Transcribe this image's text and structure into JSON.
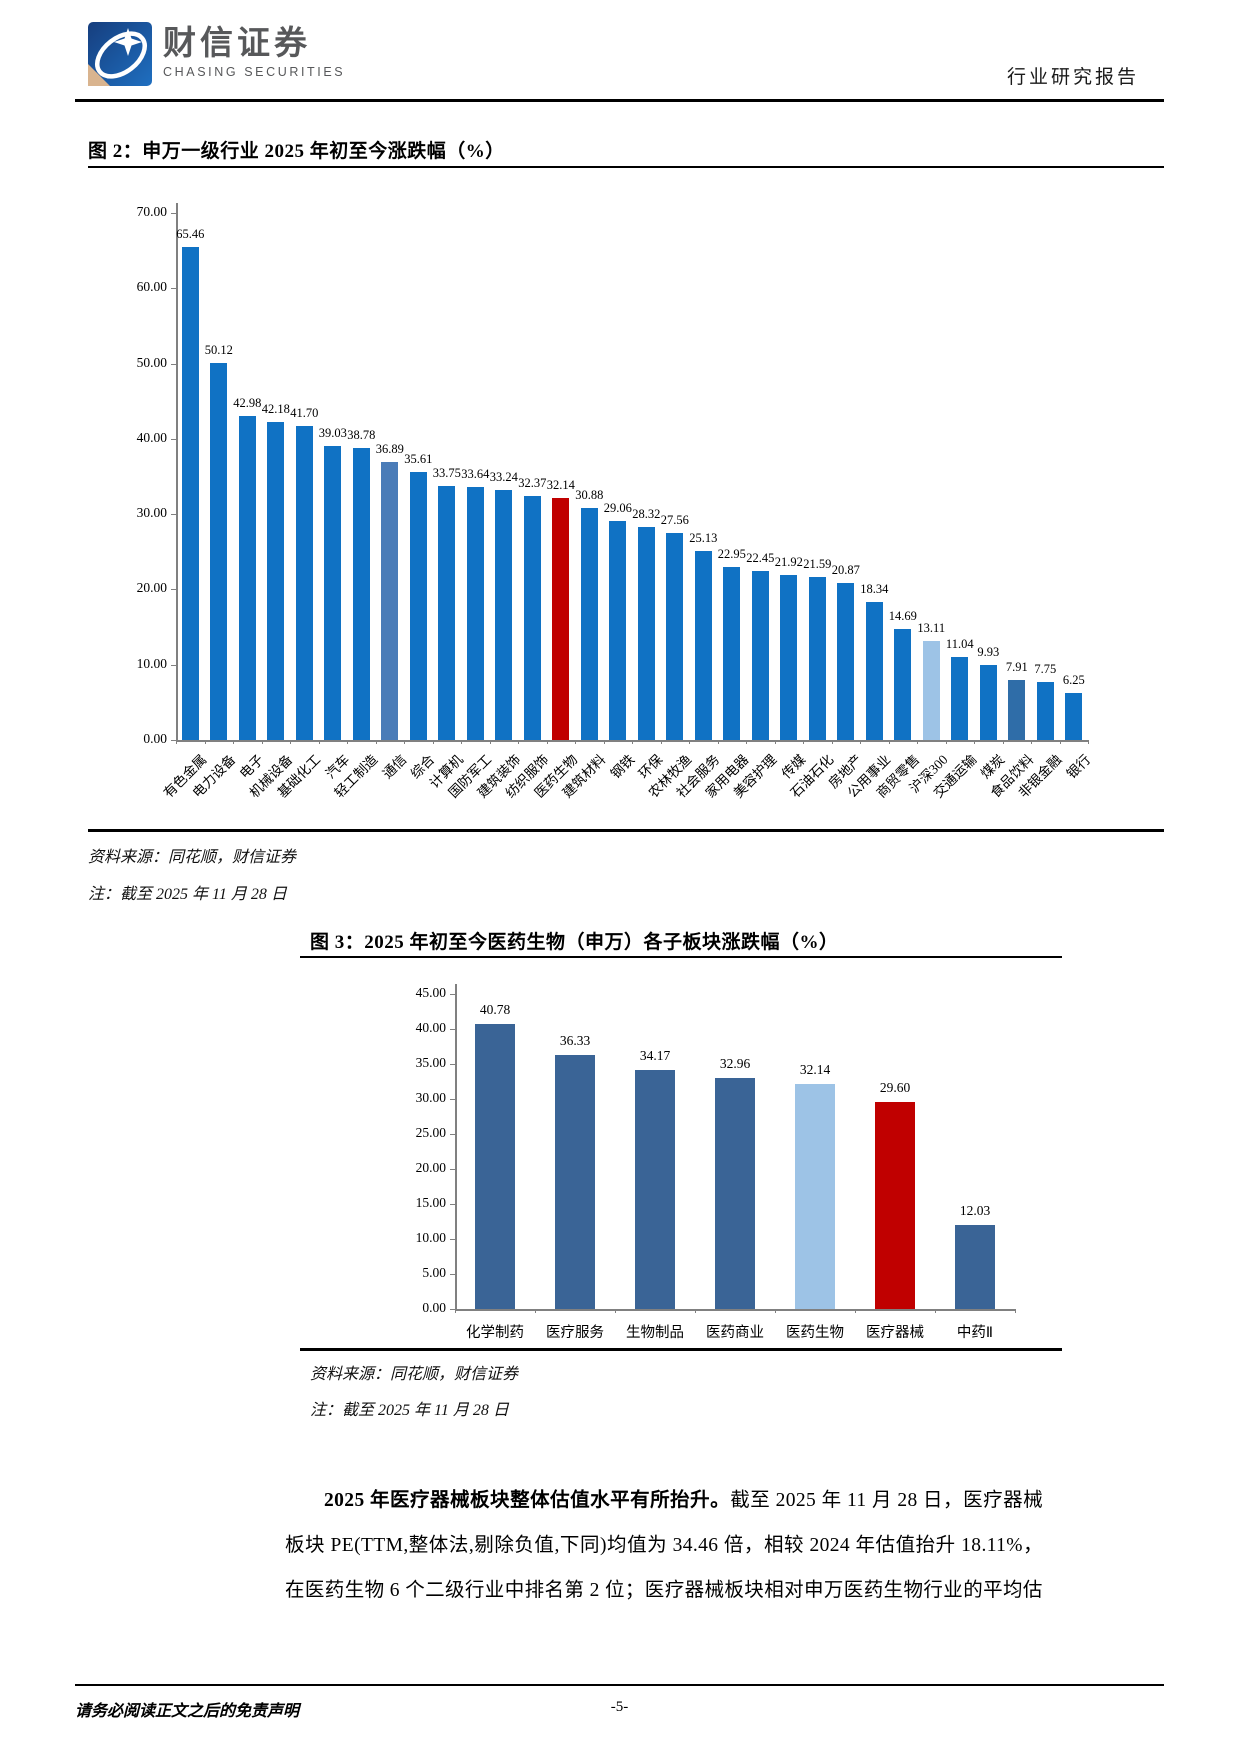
{
  "header": {
    "logo_text": "财信证券",
    "logo_subtext": "CHASING SECURITIES",
    "report_type": "行业研究报告"
  },
  "figure2": {
    "title": "图 2：申万一级行业 2025 年初至今涨跌幅（%）",
    "source": "资料来源：同花顺，财信证券",
    "note": "注：截至 2025 年 11 月 28 日"
  },
  "figure3": {
    "title": "图 3：2025 年初至今医药生物（申万）各子板块涨跌幅（%）",
    "source": "资料来源：同花顺，财信证券",
    "note": "注：截至 2025 年 11 月 28 日"
  },
  "paragraph": {
    "lead_bold": "2025 年医疗器械板块整体估值水平有所抬升。",
    "body": "截至 2025 年 11 月 28 日，医疗器械板块 PE(TTM,整体法,剔除负值,下同)均值为 34.46 倍，相较 2024 年估值抬升 18.11%，在医药生物 6 个二级行业中排名第 2 位；医疗器械板块相对申万医药生物行业的平均估"
  },
  "footer": {
    "disclaimer": "请务必阅读正文之后的免责声明",
    "page_number": "-5-"
  },
  "colors": {
    "primary_blue": "#1072C4",
    "steel_blue": "#4A7CB8",
    "muted_blue": "#2F6DA8",
    "dark_steel_blue": "#3A6496",
    "highlight_red": "#C00000",
    "light_blue": "#9DC3E6"
  },
  "chart_data": [
    {
      "type": "bar",
      "title": "申万一级行业2025年初至今涨跌幅（%）",
      "xlabel": "",
      "ylabel": "",
      "ylim": [
        0,
        70
      ],
      "ytick_step": 10,
      "grid": false,
      "legend": "none",
      "categories": [
        "有色金属",
        "电力设备",
        "电子",
        "机械设备",
        "基础化工",
        "汽车",
        "轻工制造",
        "通信",
        "综合",
        "计算机",
        "国防军工",
        "建筑装饰",
        "纺织服饰",
        "医药生物",
        "建筑材料",
        "钢铁",
        "环保",
        "农林牧渔",
        "社会服务",
        "家用电器",
        "美容护理",
        "传媒",
        "石油石化",
        "房地产",
        "公用事业",
        "商贸零售",
        "沪深300",
        "交通运输",
        "煤炭",
        "食品饮料",
        "非银金融",
        "银行"
      ],
      "values": [
        65.46,
        50.12,
        42.98,
        42.18,
        41.7,
        39.03,
        38.78,
        36.89,
        35.61,
        33.75,
        33.64,
        33.24,
        32.37,
        32.14,
        30.88,
        29.06,
        28.32,
        27.56,
        25.13,
        22.95,
        22.45,
        21.92,
        21.59,
        20.87,
        18.34,
        14.69,
        13.11,
        11.04,
        9.93,
        7.91,
        7.75,
        6.25
      ],
      "value_labels": [
        "65.46",
        "50.12",
        "42.98",
        "42.18",
        "41.70",
        "39.03",
        "38.78",
        "36.89",
        "35.61",
        "33.75",
        "33.64",
        "33.24",
        "32.37",
        "32.14",
        "30.88",
        "29.06",
        "28.32",
        "27.56",
        "25.13",
        "22.95",
        "22.45",
        "21.92",
        "21.59",
        "20.87",
        "18.34",
        "14.69",
        "13.11",
        "11.04",
        "9.93",
        "7.91",
        "7.75",
        "6.25"
      ],
      "bar_colors": [
        "#1072C4",
        "#1072C4",
        "#1072C4",
        "#1072C4",
        "#1072C4",
        "#1072C4",
        "#1072C4",
        "#4A7CB8",
        "#1072C4",
        "#1072C4",
        "#1072C4",
        "#1072C4",
        "#1072C4",
        "#C00000",
        "#1072C4",
        "#1072C4",
        "#1072C4",
        "#1072C4",
        "#1072C4",
        "#1072C4",
        "#1072C4",
        "#1072C4",
        "#1072C4",
        "#1072C4",
        "#1072C4",
        "#1072C4",
        "#9DC3E6",
        "#1072C4",
        "#1072C4",
        "#2F6DA8",
        "#1072C4",
        "#1072C4"
      ]
    },
    {
      "type": "bar",
      "title": "2025年初至今医药生物（申万）各子板块涨跌幅（%）",
      "xlabel": "",
      "ylabel": "",
      "ylim": [
        0,
        45
      ],
      "ytick_step": 5,
      "grid": false,
      "legend": "none",
      "categories": [
        "化学制药",
        "医疗服务",
        "生物制品",
        "医药商业",
        "医药生物",
        "医疗器械",
        "中药Ⅱ"
      ],
      "values": [
        40.78,
        36.33,
        34.17,
        32.96,
        32.14,
        29.6,
        12.03
      ],
      "value_labels": [
        "40.78",
        "36.33",
        "34.17",
        "32.96",
        "32.14",
        "29.60",
        "12.03"
      ],
      "bar_colors": [
        "#3A6496",
        "#3A6496",
        "#3A6496",
        "#3A6496",
        "#9DC3E6",
        "#C00000",
        "#3A6496"
      ]
    }
  ]
}
